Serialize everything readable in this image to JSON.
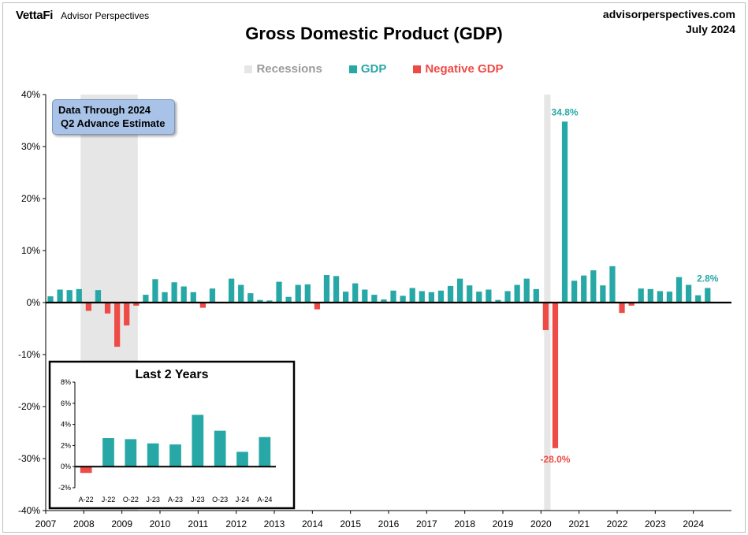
{
  "header": {
    "brand_logo": "VettaFi",
    "brand_name": "Advisor Perspectives",
    "site": "advisorperspectives.com",
    "date": "July 2024"
  },
  "note": {
    "line1": "Data Through 2024",
    "line2": "Q2 Advance Estimate"
  },
  "colors": {
    "gdp": "#27a8a6",
    "negative": "#ee4b46",
    "recession": "#e6e6e6"
  },
  "chart_data": [
    {
      "type": "bar",
      "title": "Gross Domestic Product (GDP)",
      "legend": [
        "Recessions",
        "GDP",
        "Negative GDP"
      ],
      "legend_position": "top-center",
      "ylim": [
        -40,
        40
      ],
      "ytick_step": 10,
      "yticks": [
        "40%",
        "30%",
        "20%",
        "10%",
        "0%",
        "-10%",
        "-20%",
        "-30%",
        "-40%"
      ],
      "xticks": [
        "2007",
        "2008",
        "2009",
        "2010",
        "2011",
        "2012",
        "2013",
        "2014",
        "2015",
        "2016",
        "2017",
        "2018",
        "2019",
        "2020",
        "2021",
        "2022",
        "2023",
        "2024"
      ],
      "grid": false,
      "recessions": [
        {
          "start": "2007-12",
          "end": "2009-06"
        },
        {
          "start": "2020-02",
          "end": "2020-04"
        }
      ],
      "x_start": "2007",
      "frequency": "quarterly",
      "values": [
        1.2,
        2.5,
        2.4,
        2.6,
        -1.6,
        2.4,
        -2.1,
        -8.5,
        -4.4,
        -0.6,
        1.5,
        4.5,
        2.0,
        3.9,
        3.1,
        2.0,
        -1.0,
        2.7,
        -0.1,
        4.6,
        3.4,
        1.8,
        0.5,
        0.4,
        4.0,
        1.1,
        3.4,
        3.5,
        -1.3,
        5.3,
        5.1,
        2.1,
        3.7,
        2.5,
        1.5,
        0.6,
        2.3,
        1.3,
        2.8,
        2.2,
        2.0,
        2.3,
        3.2,
        4.6,
        3.3,
        2.1,
        2.5,
        0.5,
        2.2,
        3.4,
        4.6,
        2.6,
        -5.3,
        -28.0,
        34.8,
        4.2,
        5.2,
        6.2,
        3.3,
        7.0,
        -2.0,
        -0.6,
        2.7,
        2.6,
        2.2,
        2.1,
        4.9,
        3.4,
        1.4,
        2.8
      ],
      "data_labels": [
        {
          "text": "34.8%",
          "index": 54
        },
        {
          "text": "-28.0%",
          "index": 53
        },
        {
          "text": "2.8%",
          "index": 69
        }
      ]
    },
    {
      "type": "bar",
      "title": "Last 2 Years",
      "categories": [
        "A-22",
        "J-22",
        "O-22",
        "J-23",
        "A-23",
        "J-23",
        "O-23",
        "J-24",
        "A-24"
      ],
      "values": [
        -0.6,
        2.7,
        2.6,
        2.2,
        2.1,
        4.9,
        3.4,
        1.4,
        2.8
      ],
      "ylim": [
        -2,
        8
      ],
      "yticks": [
        "8%",
        "6%",
        "4%",
        "2%",
        "0%",
        "-2%"
      ],
      "grid": false
    }
  ]
}
